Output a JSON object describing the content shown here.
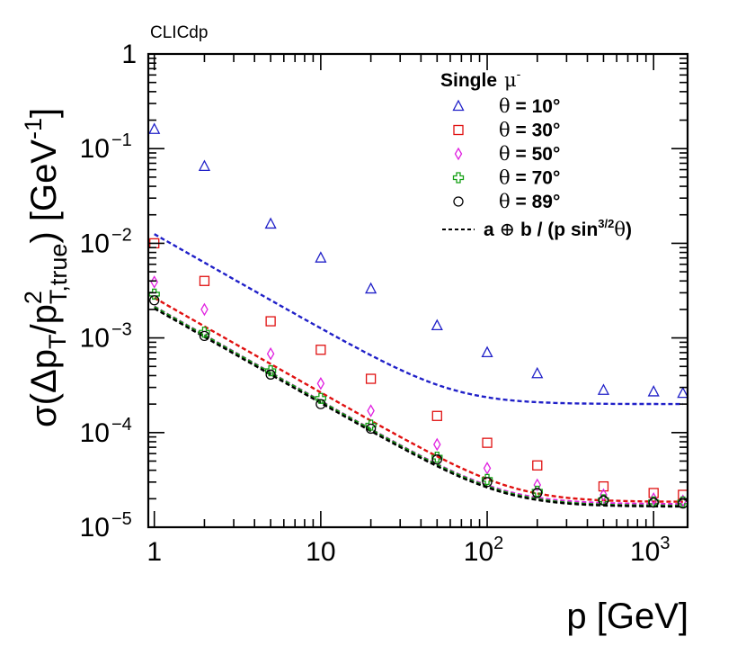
{
  "watermark": "CLICdp",
  "chart_data": {
    "type": "scatter",
    "title": "",
    "x_scale": "log",
    "y_scale": "log",
    "xlim": [
      0.92,
      1600
    ],
    "ylim": [
      1e-05,
      1
    ],
    "x_ticks": [
      {
        "value": 1,
        "base": "1",
        "exp": ""
      },
      {
        "value": 10,
        "base": "10",
        "exp": ""
      },
      {
        "value": 100,
        "base": "10",
        "exp": "2"
      },
      {
        "value": 1000,
        "base": "10",
        "exp": "3"
      }
    ],
    "y_ticks": [
      {
        "value": 1,
        "base": "1",
        "exp": ""
      },
      {
        "value": 0.1,
        "base": "10",
        "exp": "−1"
      },
      {
        "value": 0.01,
        "base": "10",
        "exp": "−2"
      },
      {
        "value": 0.001,
        "base": "10",
        "exp": "−3"
      },
      {
        "value": 0.0001,
        "base": "10",
        "exp": "−4"
      },
      {
        "value": 1e-05,
        "base": "10",
        "exp": "−5"
      }
    ],
    "xlabel": {
      "main": "p [GeV]"
    },
    "ylabel": {
      "sigma": "σ(Δp",
      "sub_t": "T",
      "slash": "/p",
      "sup_2": "2",
      "sub_ttrue": "T,true",
      "close": ") [GeV",
      "sup_m1": "-1",
      "end": "]"
    },
    "legend": {
      "header": "Single",
      "header_symbol": "μ",
      "header_sup": "-",
      "fit_label": {
        "pre": "a ",
        "oplus": "⊕",
        "mid": " b / (p sin",
        "sup": "3/2",
        "theta": "θ",
        "end": ")"
      }
    },
    "x": [
      1,
      2,
      5,
      10,
      20,
      50,
      100,
      200,
      500,
      1000,
      1500
    ],
    "series": [
      {
        "name": "θ = 10°",
        "marker": "triangle",
        "color": "#2020c8",
        "values": [
          0.16,
          0.065,
          0.016,
          0.007,
          0.0033,
          0.00135,
          0.0007,
          0.00042,
          0.00028,
          0.00027,
          0.00026
        ],
        "fit": {
          "a": 0.0002,
          "b": 0.0125
        }
      },
      {
        "name": "θ = 30°",
        "marker": "square",
        "color": "#e01010",
        "values": [
          0.01,
          0.004,
          0.0015,
          0.00075,
          0.00037,
          0.00015,
          7.8e-05,
          4.5e-05,
          2.7e-05,
          2.3e-05,
          2.2e-05
        ],
        "fit": {
          "a": 1.85e-05,
          "b": 0.00265
        }
      },
      {
        "name": "θ = 50°",
        "marker": "diamond",
        "color": "#e020e0",
        "values": [
          0.0039,
          0.002,
          0.00068,
          0.00033,
          0.00017,
          7.5e-05,
          4.2e-05,
          2.8e-05,
          2.2e-05,
          2e-05,
          1.9e-05
        ],
        "fit": {
          "a": 1.75e-05,
          "b": 0.00215
        }
      },
      {
        "name": "θ = 70°",
        "marker": "cross",
        "color": "#14a014",
        "values": [
          0.0029,
          0.00115,
          0.00045,
          0.00023,
          0.00012,
          5.5e-05,
          3.2e-05,
          2.4e-05,
          1.95e-05,
          1.85e-05,
          1.85e-05
        ],
        "fit": {
          "a": 1.68e-05,
          "b": 0.00213
        }
      },
      {
        "name": "θ = 89°",
        "marker": "circle",
        "color": "#000000",
        "values": [
          0.0025,
          0.00105,
          0.00041,
          0.0002,
          0.00011,
          5.2e-05,
          3e-05,
          2.3e-05,
          1.92e-05,
          1.82e-05,
          1.78e-05
        ],
        "fit": {
          "a": 1.65e-05,
          "b": 0.00205
        }
      }
    ]
  }
}
